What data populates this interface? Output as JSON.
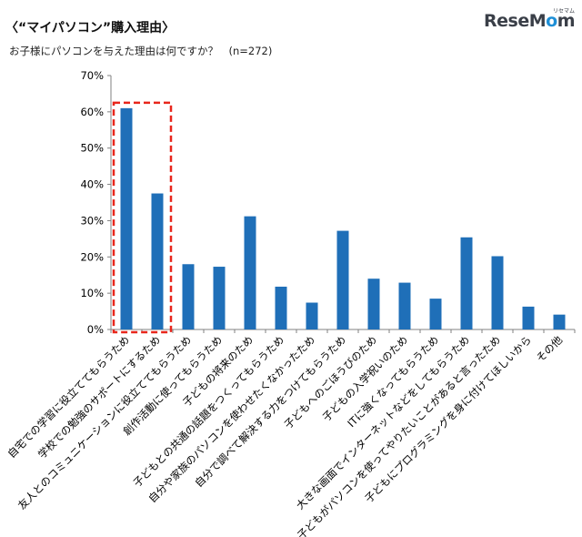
{
  "header": {
    "title": "〈“マイパソコン”購入理由〉",
    "subtitle": "お子様にパソコンを与えた理由は何ですか？　(n=272)"
  },
  "brand": {
    "logo_main": "ReseMom",
    "logo_accent_letter": "o",
    "logo_sub": "リセマム"
  },
  "colors": {
    "bar": "#1f6fb8",
    "highlight": "#e8261b",
    "axis": "#808080",
    "grid": "#d0d0d0"
  },
  "chart_data": {
    "type": "bar",
    "title": "",
    "xlabel": "",
    "ylabel": "",
    "ylim": [
      0,
      70
    ],
    "yticks": [
      "0%",
      "10%",
      "20%",
      "30%",
      "40%",
      "50%",
      "60%",
      "70%"
    ],
    "ytick_values": [
      0,
      10,
      20,
      30,
      40,
      50,
      60,
      70
    ],
    "categories": [
      "自宅での学習に役立ててもらうため",
      "学校での勉強のサポートにするため",
      "友人とのコミュニケーションに役立ててもらうため",
      "創作活動に使ってもらうため",
      "子どもの将来のため",
      "子どもとの共通の話題をつくってもらうため",
      "自分や家族のパソコンを使わせたくなかったため",
      "自分で調べて解決する力をつけてもらうため",
      "子どもへのごほうびのため",
      "子どもの入学祝いのため",
      "ITに強くなってもらうため",
      "大きな画面でインターネットなどをしてもらうため",
      "子どもがパソコンを使ってやりたいことがあると言ったため",
      "子どもにプログラミングを身に付けてほしいから",
      "その他"
    ],
    "values": [
      61,
      37.5,
      18,
      17.3,
      31.2,
      11.8,
      7.4,
      27.2,
      14,
      12.9,
      8.5,
      25.4,
      20.2,
      6.3,
      4.1
    ],
    "highlighted_categories": [
      0,
      1
    ],
    "grid": false
  }
}
